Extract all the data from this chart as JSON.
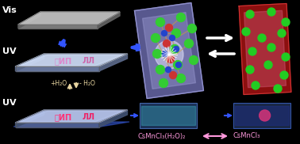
{
  "bg_color": "#000000",
  "vis_label": "Vis",
  "uv_label1": "UV",
  "uv_label2": "UV",
  "h2o_add": "+H₂O",
  "h2o_remove": "- H₂O",
  "formula_left": "CsMnCl₃(H₂O)₂",
  "formula_right": "CsMnCl₃",
  "text_color": "#ffffff",
  "pink_arrow_color": "#ff99dd",
  "beige_arrow_color": "#e8d5a0",
  "blue_beam_color": "#3355ff",
  "gray_slab_top": "#c0c0c0",
  "gray_slab_side": "#606060",
  "gray_slab_front": "#808080",
  "uv1_top": "#c0b8e0",
  "uv1_side": "#5a6080",
  "uv1_front": "#7070a0",
  "uv2_top": "#a8b8e8",
  "uv2_side": "#405070",
  "uv2_front": "#506090",
  "uv1_text_color": "#dd66cc",
  "uv2_text_color": "#cc3388",
  "crystal_box_fill": "#7878b0",
  "crystal_box_edge": "#a0a0cc",
  "red_box_fill": "#aa1a1a",
  "red_box_edge": "#cc4444",
  "green_ball": "#22cc22",
  "red_ball": "#cc2222",
  "blue_ball": "#2244ee",
  "white_arrow": "#ffffff",
  "small_box_left_bg": "#1a3a60",
  "small_box_right_bg": "#1a2a50",
  "emit_color_left": "#44ddcc",
  "emit_color_right": "#dd4488"
}
